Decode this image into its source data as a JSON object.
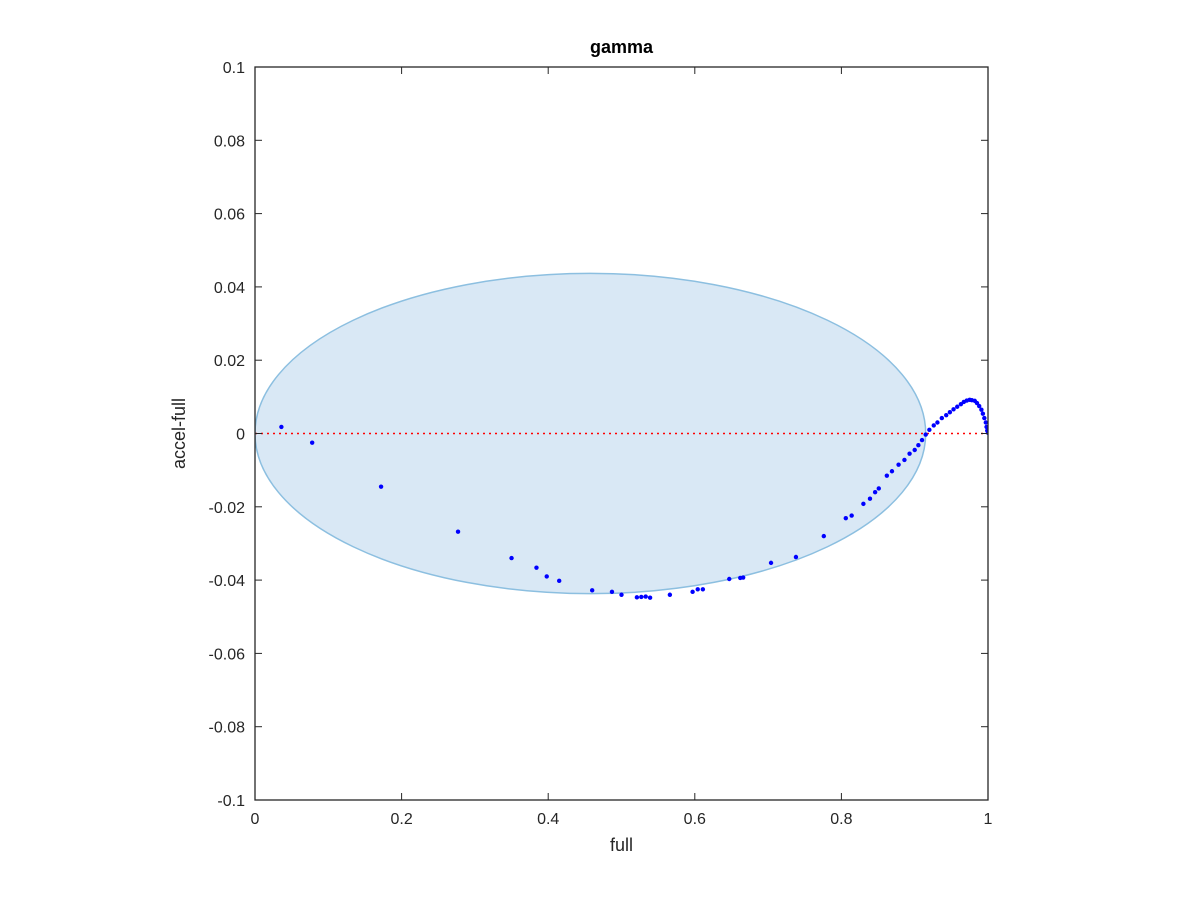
{
  "chart_data": {
    "type": "scatter",
    "title": "gamma",
    "xlabel": "full",
    "ylabel": "accel-full",
    "xlim": [
      0,
      1
    ],
    "ylim": [
      -0.1,
      0.1
    ],
    "xticks": [
      0,
      0.2,
      0.4,
      0.6,
      0.8,
      1
    ],
    "xtick_labels": [
      "0",
      "0.2",
      "0.4",
      "0.6",
      "0.8",
      "1"
    ],
    "yticks": [
      -0.1,
      -0.08,
      -0.06,
      -0.04,
      -0.02,
      0,
      0.02,
      0.04,
      0.06,
      0.08,
      0.1
    ],
    "ytick_labels": [
      "-0.1",
      "-0.08",
      "-0.06",
      "-0.04",
      "-0.02",
      "0",
      "0.02",
      "0.04",
      "0.06",
      "0.08",
      "0.1"
    ],
    "grid": false,
    "reference_line": {
      "y": 0,
      "style": "dotted",
      "color": "#ff0000"
    },
    "ellipse": {
      "cx": 0.4575,
      "cy": 0.0,
      "rx": 0.4575,
      "ry": 0.0437,
      "fill": "#d9e8f5",
      "stroke": "#8cbfe0"
    },
    "marker_color": "#0000ff",
    "points": [
      [
        0.036,
        0.0018
      ],
      [
        0.078,
        -0.0025
      ],
      [
        0.172,
        -0.0145
      ],
      [
        0.277,
        -0.0268
      ],
      [
        0.35,
        -0.034
      ],
      [
        0.384,
        -0.0366
      ],
      [
        0.398,
        -0.039
      ],
      [
        0.415,
        -0.0402
      ],
      [
        0.46,
        -0.0428
      ],
      [
        0.487,
        -0.0432
      ],
      [
        0.5,
        -0.044
      ],
      [
        0.521,
        -0.0447
      ],
      [
        0.527,
        -0.0446
      ],
      [
        0.533,
        -0.0445
      ],
      [
        0.539,
        -0.0448
      ],
      [
        0.566,
        -0.044
      ],
      [
        0.597,
        -0.0432
      ],
      [
        0.604,
        -0.0425
      ],
      [
        0.611,
        -0.0425
      ],
      [
        0.647,
        -0.0397
      ],
      [
        0.662,
        -0.0394
      ],
      [
        0.666,
        -0.0393
      ],
      [
        0.704,
        -0.0353
      ],
      [
        0.738,
        -0.0337
      ],
      [
        0.776,
        -0.028
      ],
      [
        0.806,
        -0.0231
      ],
      [
        0.814,
        -0.0224
      ],
      [
        0.83,
        -0.0192
      ],
      [
        0.839,
        -0.0178
      ],
      [
        0.846,
        -0.016
      ],
      [
        0.851,
        -0.015
      ],
      [
        0.862,
        -0.0115
      ],
      [
        0.869,
        -0.0103
      ],
      [
        0.878,
        -0.0085
      ],
      [
        0.886,
        -0.0072
      ],
      [
        0.893,
        -0.0055
      ],
      [
        0.9,
        -0.0045
      ],
      [
        0.905,
        -0.0032
      ],
      [
        0.91,
        -0.0018
      ],
      [
        0.915,
        -0.0003
      ],
      [
        0.92,
        0.001
      ],
      [
        0.926,
        0.0022
      ],
      [
        0.931,
        0.003
      ],
      [
        0.937,
        0.0042
      ],
      [
        0.943,
        0.005
      ],
      [
        0.948,
        0.0058
      ],
      [
        0.953,
        0.0066
      ],
      [
        0.958,
        0.0073
      ],
      [
        0.963,
        0.008
      ],
      [
        0.967,
        0.0086
      ],
      [
        0.971,
        0.009
      ],
      [
        0.975,
        0.0092
      ],
      [
        0.978,
        0.0091
      ],
      [
        0.982,
        0.0089
      ],
      [
        0.985,
        0.0083
      ],
      [
        0.988,
        0.0075
      ],
      [
        0.991,
        0.0065
      ],
      [
        0.993,
        0.0054
      ],
      [
        0.995,
        0.0042
      ],
      [
        0.997,
        0.003
      ],
      [
        0.998,
        0.0018
      ],
      [
        0.999,
        0.0008
      ],
      [
        1.0,
        0.0002
      ]
    ]
  }
}
